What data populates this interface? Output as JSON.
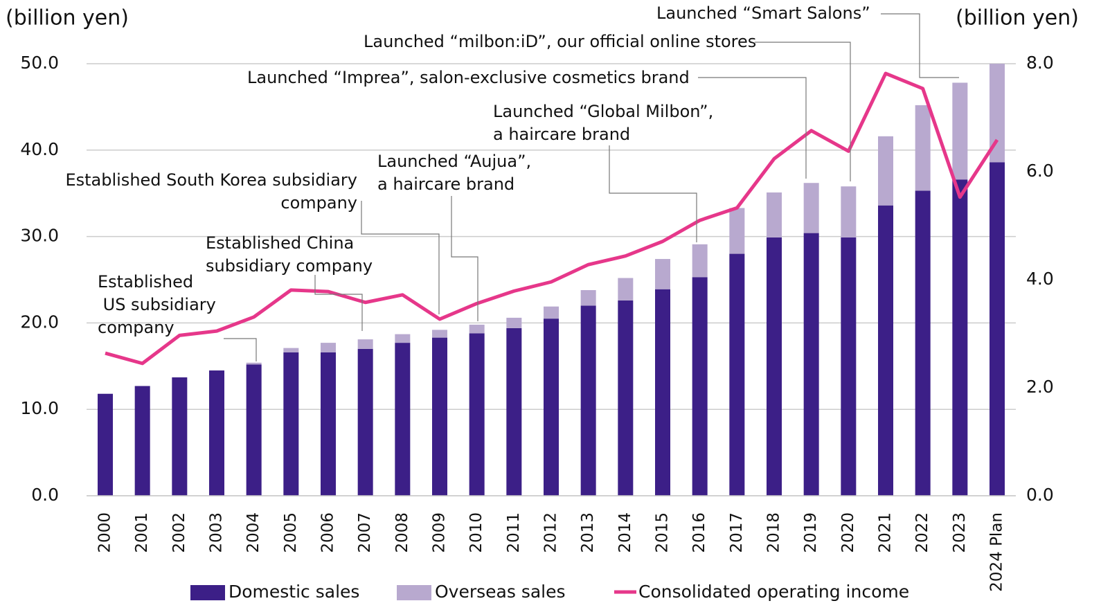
{
  "chart_data": {
    "type": "bar",
    "stacked": true,
    "y_label": "(billion yen)",
    "y2_label": "(billion yen)",
    "categories": [
      "2000",
      "2001",
      "2002",
      "2003",
      "2004",
      "2005",
      "2006",
      "2007",
      "2008",
      "2009",
      "2010",
      "2011",
      "2012",
      "2013",
      "2014",
      "2015",
      "2016",
      "2017",
      "2018",
      "2019",
      "2020",
      "2021",
      "2022",
      "2023",
      "2024 Plan"
    ],
    "series": [
      {
        "name": "Domestic sales",
        "color": "#3c1f87",
        "values": [
          11.8,
          12.7,
          13.7,
          14.5,
          15.2,
          16.6,
          16.6,
          17.0,
          17.7,
          18.3,
          18.8,
          19.4,
          20.5,
          22.0,
          22.6,
          23.9,
          25.3,
          28.0,
          29.9,
          30.4,
          29.9,
          33.6,
          35.3,
          36.6,
          38.6
        ]
      },
      {
        "name": "Overseas sales",
        "color": "#b8a9cf",
        "values": [
          0,
          0,
          0,
          0,
          0.2,
          0.5,
          1.1,
          1.1,
          1.0,
          0.9,
          1.0,
          1.2,
          1.4,
          1.8,
          2.6,
          3.5,
          3.8,
          5.3,
          5.2,
          5.8,
          5.9,
          8.0,
          9.9,
          11.2,
          11.4
        ]
      },
      {
        "name": "Consolidated operating income",
        "color": "#e6378a",
        "type": "line",
        "axis": "y2",
        "values": [
          2.64,
          2.45,
          2.97,
          3.05,
          3.31,
          3.81,
          3.78,
          3.58,
          3.72,
          3.27,
          3.56,
          3.79,
          3.96,
          4.28,
          4.44,
          4.71,
          5.1,
          5.33,
          6.24,
          6.76,
          6.38,
          7.82,
          7.54,
          5.53,
          6.59
        ]
      }
    ],
    "ylim": [
      0,
      50
    ],
    "yticks": [
      {
        "value": 0,
        "label": "0.0"
      },
      {
        "value": 10,
        "label": "10.0"
      },
      {
        "value": 20,
        "label": "20.0"
      },
      {
        "value": 30,
        "label": "30.0"
      },
      {
        "value": 40,
        "label": "40.0"
      },
      {
        "value": 50,
        "label": "50.0"
      }
    ],
    "y2lim": [
      0,
      8
    ],
    "y2ticks": [
      {
        "value": 0,
        "label": "0.0"
      },
      {
        "value": 2,
        "label": "2.0"
      },
      {
        "value": 4,
        "label": "4.0"
      },
      {
        "value": 6,
        "label": "6.0"
      },
      {
        "value": 8,
        "label": "8.0"
      }
    ],
    "grid": true,
    "legend": "bottom",
    "annotations": [
      {
        "lines": [
          "Established",
          " US subsidiary",
          "company"
        ]
      },
      {
        "lines": [
          "Established China",
          "subsidiary company"
        ]
      },
      {
        "lines": [
          "Established South Korea subsidiary",
          "company"
        ]
      },
      {
        "lines": [
          "Launched “Aujua”,",
          "a haircare brand"
        ]
      },
      {
        "lines": [
          "Launched “Global Milbon”,",
          "a haircare brand"
        ]
      },
      {
        "lines": [
          "Launched “Imprea”, salon-exclusive cosmetics brand"
        ]
      },
      {
        "lines": [
          "Launched “milbon:iD”, our official online stores"
        ]
      },
      {
        "lines": [
          "Launched “Smart Salons”"
        ]
      }
    ]
  }
}
